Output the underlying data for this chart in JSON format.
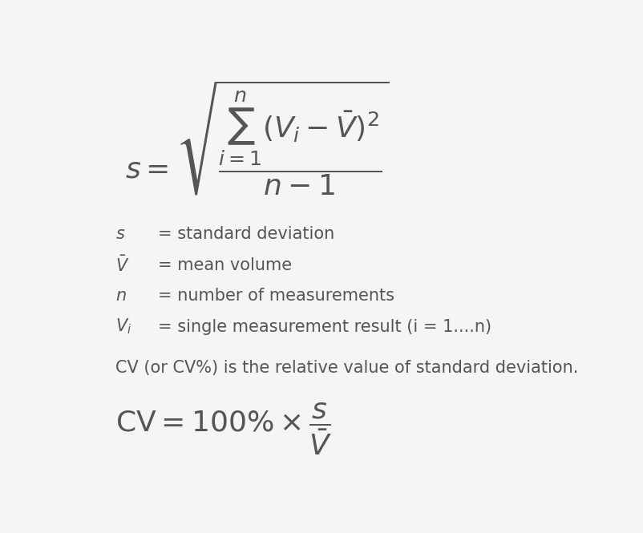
{
  "background_color": "#f5f5f5",
  "text_color": "#555555",
  "formula1_latex": "$s = \\sqrt{\\dfrac{\\sum_{i=1}^{n}(V_i - \\bar{V})^2}{n-1}}$",
  "definition_lines": [
    [
      "$s$",
      "= standard deviation"
    ],
    [
      "$\\bar{V}$",
      "= mean volume"
    ],
    [
      "$n$",
      "= number of measurements"
    ],
    [
      "$V_i$",
      "= single measurement result (i = 1....n)"
    ]
  ],
  "cv_description": "CV (or CV%) is the relative value of standard deviation.",
  "formula2_latex": "$\\mathrm{CV} = 100\\% \\times \\dfrac{s}{\\bar{V}}$",
  "formula1_fontsize": 26,
  "formula2_fontsize": 26,
  "def_fontsize": 15,
  "cv_desc_fontsize": 15
}
